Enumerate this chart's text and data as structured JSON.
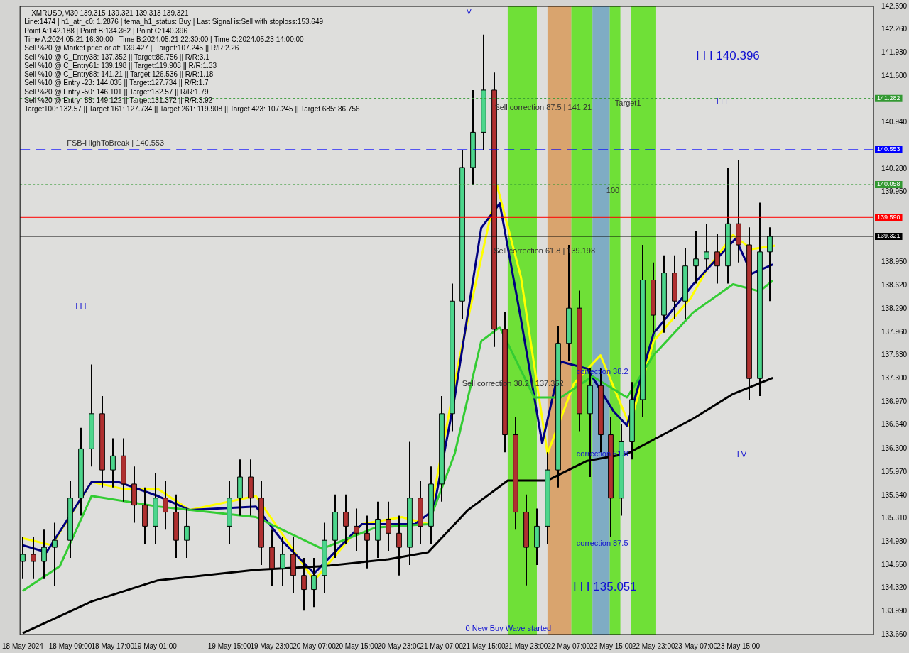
{
  "chart_data": {
    "type": "candlestick",
    "title": "XMRUSD,M30 139.315 139.321 139.313 139.321",
    "x": [
      "2024-05-18T00:00",
      "2024-05-18T02:00",
      "2024-05-18T04:00",
      "2024-05-18T06:00",
      "2024-05-18T09:00",
      "2024-05-18T11:00",
      "2024-05-18T13:00",
      "2024-05-18T15:00",
      "2024-05-18T17:00",
      "2024-05-18T19:00",
      "2024-05-18T21:00",
      "2024-05-18T23:00",
      "2024-05-19T01:00",
      "2024-05-19T03:00",
      "2024-05-19T05:00",
      "2024-05-19T07:00",
      "2024-05-19T15:00",
      "2024-05-19T17:00",
      "2024-05-19T19:00",
      "2024-05-19T21:00",
      "2024-05-19T23:00",
      "2024-05-20T01:00",
      "2024-05-20T03:00",
      "2024-05-20T05:00",
      "2024-05-20T07:00",
      "2024-05-20T09:00",
      "2024-05-20T11:00",
      "2024-05-20T13:00",
      "2024-05-20T15:00",
      "2024-05-20T17:00",
      "2024-05-20T19:00",
      "2024-05-20T21:00",
      "2024-05-20T23:00",
      "2024-05-21T01:00",
      "2024-05-21T03:00",
      "2024-05-21T05:00",
      "2024-05-21T07:00",
      "2024-05-21T09:00",
      "2024-05-21T11:00",
      "2024-05-21T13:00",
      "2024-05-21T15:00",
      "2024-05-21T17:00",
      "2024-05-21T19:00",
      "2024-05-21T21:00",
      "2024-05-21T23:00",
      "2024-05-22T01:00",
      "2024-05-22T03:00",
      "2024-05-22T05:00",
      "2024-05-22T07:00",
      "2024-05-22T09:00",
      "2024-05-22T11:00",
      "2024-05-22T13:00",
      "2024-05-22T15:00",
      "2024-05-22T17:00",
      "2024-05-22T19:00",
      "2024-05-22T21:00",
      "2024-05-22T23:00",
      "2024-05-23T01:00",
      "2024-05-23T03:00",
      "2024-05-23T05:00",
      "2024-05-23T07:00",
      "2024-05-23T09:00",
      "2024-05-23T11:00",
      "2024-05-23T13:00",
      "2024-05-23T15:00",
      "2024-05-23T17:00",
      "2024-05-23T19:00",
      "2024-05-23T21:00"
    ],
    "ohlc": [
      [
        134.7,
        135.05,
        134.45,
        134.8
      ],
      [
        134.8,
        135.05,
        134.45,
        134.7
      ],
      [
        134.7,
        135.15,
        134.45,
        134.9
      ],
      [
        134.9,
        135.25,
        134.35,
        135.0
      ],
      [
        135.0,
        135.85,
        134.75,
        135.6
      ],
      [
        135.6,
        136.6,
        135.35,
        136.3
      ],
      [
        136.3,
        137.5,
        136.05,
        136.8
      ],
      [
        136.8,
        137.05,
        135.75,
        136.0
      ],
      [
        136.0,
        136.45,
        135.75,
        136.2
      ],
      [
        136.2,
        136.45,
        135.55,
        135.8
      ],
      [
        135.8,
        136.05,
        135.25,
        135.5
      ],
      [
        135.5,
        135.75,
        134.95,
        135.2
      ],
      [
        135.2,
        135.95,
        134.95,
        135.6
      ],
      [
        135.6,
        135.85,
        135.15,
        135.4
      ],
      [
        135.4,
        135.65,
        134.75,
        135.0
      ],
      [
        135.0,
        135.45,
        134.75,
        135.2
      ],
      [
        135.2,
        135.85,
        134.95,
        135.6
      ],
      [
        135.6,
        136.15,
        135.35,
        135.9
      ],
      [
        135.9,
        136.15,
        135.35,
        135.6
      ],
      [
        135.6,
        135.85,
        134.65,
        134.9
      ],
      [
        134.9,
        135.15,
        134.35,
        134.6
      ],
      [
        134.6,
        135.05,
        134.35,
        134.8
      ],
      [
        134.8,
        135.05,
        134.25,
        134.5
      ],
      [
        134.5,
        134.75,
        134.0,
        134.3
      ],
      [
        134.3,
        134.75,
        134.05,
        134.5
      ],
      [
        134.5,
        135.25,
        134.25,
        135.0
      ],
      [
        135.0,
        135.65,
        134.75,
        135.4
      ],
      [
        135.4,
        135.65,
        134.95,
        135.2
      ],
      [
        135.2,
        135.45,
        134.85,
        135.1
      ],
      [
        135.1,
        135.35,
        134.6,
        135.0
      ],
      [
        135.0,
        135.55,
        134.75,
        135.3
      ],
      [
        135.3,
        135.55,
        134.85,
        135.1
      ],
      [
        135.1,
        135.35,
        134.5,
        134.9
      ],
      [
        134.9,
        136.4,
        134.65,
        135.6
      ],
      [
        135.6,
        135.85,
        134.95,
        135.2
      ],
      [
        135.2,
        136.05,
        134.95,
        135.8
      ],
      [
        135.8,
        137.05,
        135.55,
        136.8
      ],
      [
        136.8,
        138.65,
        136.55,
        138.4
      ],
      [
        138.4,
        140.55,
        138.15,
        140.3
      ],
      [
        140.3,
        141.4,
        140.05,
        140.8
      ],
      [
        140.8,
        142.19,
        140.55,
        141.4
      ],
      [
        141.4,
        141.65,
        137.75,
        138.0
      ],
      [
        138.0,
        138.25,
        136.25,
        136.5
      ],
      [
        136.5,
        136.75,
        135.15,
        135.4
      ],
      [
        135.4,
        135.65,
        134.36,
        134.9
      ],
      [
        134.9,
        135.45,
        134.65,
        135.2
      ],
      [
        135.2,
        136.25,
        134.95,
        136.0
      ],
      [
        136.0,
        138.05,
        135.75,
        137.8
      ],
      [
        137.8,
        139.2,
        137.55,
        138.3
      ],
      [
        138.3,
        138.55,
        136.55,
        136.8
      ],
      [
        136.8,
        137.45,
        135.9,
        137.2
      ],
      [
        137.2,
        137.45,
        136.25,
        136.5
      ],
      [
        136.5,
        136.75,
        135.05,
        135.6
      ],
      [
        135.6,
        136.65,
        135.35,
        136.4
      ],
      [
        136.4,
        137.25,
        136.15,
        137.0
      ],
      [
        137.0,
        139.2,
        136.75,
        138.7
      ],
      [
        138.7,
        138.95,
        137.95,
        138.2
      ],
      [
        138.2,
        139.05,
        137.95,
        138.8
      ],
      [
        138.8,
        139.05,
        138.15,
        138.4
      ],
      [
        138.4,
        139.15,
        138.15,
        138.9
      ],
      [
        138.9,
        139.4,
        138.65,
        139.0
      ],
      [
        139.0,
        139.5,
        138.85,
        139.1
      ],
      [
        139.1,
        139.35,
        138.65,
        138.9
      ],
      [
        138.9,
        140.3,
        138.65,
        139.5
      ],
      [
        139.5,
        140.4,
        138.95,
        139.2
      ],
      [
        139.2,
        139.45,
        137.0,
        137.3
      ],
      [
        137.3,
        139.8,
        137.05,
        139.1
      ],
      [
        139.1,
        139.45,
        138.4,
        139.321
      ]
    ],
    "colors": [
      "#4cd68c",
      "#b03030",
      "#4cd68c",
      "#4cd68c",
      "#4cd68c",
      "#4cd68c",
      "#4cd68c",
      "#b03030",
      "#4cd68c",
      "#b03030",
      "#b03030",
      "#b03030",
      "#4cd68c",
      "#b03030",
      "#b03030",
      "#4cd68c",
      "#4cd68c",
      "#4cd68c",
      "#b03030",
      "#b03030",
      "#b03030",
      "#4cd68c",
      "#b03030",
      "#b03030",
      "#4cd68c",
      "#4cd68c",
      "#4cd68c",
      "#b03030",
      "#b03030",
      "#b03030",
      "#4cd68c",
      "#b03030",
      "#b03030",
      "#4cd68c",
      "#b03030",
      "#4cd68c",
      "#4cd68c",
      "#4cd68c",
      "#4cd68c",
      "#4cd68c",
      "#4cd68c",
      "#b03030",
      "#b03030",
      "#b03030",
      "#b03030",
      "#4cd68c",
      "#4cd68c",
      "#4cd68c",
      "#4cd68c",
      "#b03030",
      "#4cd68c",
      "#b03030",
      "#b03030",
      "#4cd68c",
      "#4cd68c",
      "#4cd68c",
      "#b03030",
      "#4cd68c",
      "#b03030",
      "#4cd68c",
      "#4cd68c",
      "#4cd68c",
      "#b03030",
      "#4cd68c",
      "#b03030",
      "#b03030",
      "#4cd68c",
      "#4cd68c"
    ],
    "series": [
      {
        "type": "line",
        "color": "#000000",
        "x": [
          "2024-05-18T00:00",
          "2024-05-18T13:00",
          "2024-05-19T01:30",
          "2024-05-19T20:00",
          "2024-05-20T08:30",
          "2024-05-20T21:00",
          "2024-05-21T04:30",
          "2024-05-21T12:00",
          "2024-05-21T19:30",
          "2024-05-22T03:00",
          "2024-05-22T10:30",
          "2024-05-22T18:00",
          "2024-05-22T23:00",
          "2024-05-23T06:30",
          "2024-05-23T14:00",
          "2024-05-23T21:30"
        ],
        "values": [
          133.68,
          134.13,
          134.43,
          134.58,
          134.63,
          134.73,
          134.83,
          135.43,
          135.85,
          135.85,
          136.13,
          136.23,
          136.43,
          136.73,
          137.08,
          137.31
        ]
      },
      {
        "type": "line",
        "color": "#33cc33",
        "x": [
          "2024-05-18T00:00",
          "2024-05-18T07:00",
          "2024-05-18T13:00",
          "2024-05-19T01:30",
          "2024-05-19T20:00",
          "2024-05-20T08:30",
          "2024-05-20T18:30",
          "2024-05-21T04:30",
          "2024-05-21T09:30",
          "2024-05-21T14:30",
          "2024-05-21T18:00",
          "2024-05-22T00:30",
          "2024-05-22T05:30",
          "2024-05-22T11:30",
          "2024-05-22T18:00",
          "2024-05-22T23:00",
          "2024-05-23T06:30",
          "2024-05-23T14:00",
          "2024-05-23T19:00",
          "2024-05-23T21:30"
        ],
        "values": [
          134.28,
          134.63,
          135.63,
          135.48,
          135.33,
          134.88,
          135.18,
          135.23,
          136.23,
          137.83,
          138.03,
          137.03,
          137.03,
          137.33,
          137.03,
          137.63,
          138.24,
          138.64,
          138.54,
          138.69
        ]
      },
      {
        "type": "line",
        "color": "#000080",
        "x": [
          "2024-05-18T00:00",
          "2024-05-18T04:30",
          "2024-05-18T13:00",
          "2024-05-18T18:00",
          "2024-05-19T01:30",
          "2024-05-19T07:30",
          "2024-05-19T20:00",
          "2024-05-20T01:00",
          "2024-05-20T07:00",
          "2024-05-20T16:00",
          "2024-05-21T02:00",
          "2024-05-21T05:30",
          "2024-05-21T09:30",
          "2024-05-21T14:30",
          "2024-05-21T18:00",
          "2024-05-21T22:00",
          "2024-05-22T02:00",
          "2024-05-22T05:30",
          "2024-05-22T10:30",
          "2024-05-22T15:30",
          "2024-05-22T18:00",
          "2024-05-22T23:00",
          "2024-05-23T06:30",
          "2024-05-23T14:30",
          "2024-05-23T17:30",
          "2024-05-23T21:30"
        ],
        "values": [
          134.93,
          134.83,
          135.83,
          135.83,
          135.63,
          135.43,
          135.48,
          134.99,
          134.53,
          135.23,
          135.23,
          135.43,
          137.03,
          139.44,
          139.79,
          138.14,
          136.38,
          137.54,
          137.44,
          136.83,
          136.63,
          137.94,
          138.64,
          139.29,
          138.79,
          138.92
        ]
      },
      {
        "type": "line",
        "color": "#ffff00",
        "x": [
          "2024-05-18T00:00",
          "2024-05-18T05:30",
          "2024-05-18T13:00",
          "2024-05-18T19:00",
          "2024-05-19T01:30",
          "2024-05-19T07:30",
          "2024-05-19T20:00",
          "2024-05-20T07:00",
          "2024-05-20T16:00",
          "2024-05-20T23:30",
          "2024-05-21T04:30",
          "2024-05-21T10:30",
          "2024-05-21T17:30",
          "2024-05-21T22:00",
          "2024-05-22T03:00",
          "2024-05-22T08:00",
          "2024-05-22T13:00",
          "2024-05-22T18:30",
          "2024-05-22T23:00",
          "2024-05-23T06:00",
          "2024-05-23T09:00",
          "2024-05-23T14:00",
          "2024-05-23T17:30",
          "2024-05-23T22:00"
        ],
        "values": [
          135.03,
          134.93,
          135.83,
          135.73,
          135.73,
          135.43,
          135.63,
          134.43,
          135.23,
          135.33,
          135.23,
          137.63,
          140.04,
          138.74,
          136.23,
          137.23,
          137.63,
          136.63,
          137.83,
          138.44,
          138.84,
          139.34,
          139.14,
          139.19
        ]
      }
    ],
    "xlim": [
      "2024-05-17T23:30",
      "2024-05-24T16:30"
    ],
    "xticks": [
      {
        "value": "2024-05-18T00:00",
        "label": "18 May 2024"
      },
      {
        "value": "2024-05-18T09:00",
        "label": "18 May 09:00"
      },
      {
        "value": "2024-05-18T17:00",
        "label": "18 May 17:00"
      },
      {
        "value": "2024-05-19T01:00",
        "label": "19 May 01:00"
      },
      {
        "value": "2024-05-19T15:00",
        "label": "19 May 15:00"
      },
      {
        "value": "2024-05-19T23:00",
        "label": "19 May 23:00"
      },
      {
        "value": "2024-05-20T07:00",
        "label": "20 May 07:00"
      },
      {
        "value": "2024-05-20T15:00",
        "label": "20 May 15:00"
      },
      {
        "value": "2024-05-20T23:00",
        "label": "20 May 23:00"
      },
      {
        "value": "2024-05-21T07:00",
        "label": "21 May 07:00"
      },
      {
        "value": "2024-05-21T15:00",
        "label": "21 May 15:00"
      },
      {
        "value": "2024-05-21T23:00",
        "label": "21 May 23:00"
      },
      {
        "value": "2024-05-22T07:00",
        "label": "22 May 07:00"
      },
      {
        "value": "2024-05-22T15:00",
        "label": "22 May 15:00"
      },
      {
        "value": "2024-05-22T23:00",
        "label": "22 May 23:00"
      },
      {
        "value": "2024-05-23T07:00",
        "label": "23 May 07:00"
      },
      {
        "value": "2024-05-23T15:00",
        "label": "23 May 15:00"
      }
    ],
    "ylim": [
      133.66,
      142.59
    ],
    "yticks": [
      {
        "value": 133.66,
        "label": "133.660"
      },
      {
        "value": 133.99,
        "label": "133.990"
      },
      {
        "value": 134.32,
        "label": "134.320"
      },
      {
        "value": 134.65,
        "label": "134.650"
      },
      {
        "value": 134.98,
        "label": "134.980"
      },
      {
        "value": 135.31,
        "label": "135.310"
      },
      {
        "value": 135.64,
        "label": "135.640"
      },
      {
        "value": 135.97,
        "label": "135.970"
      },
      {
        "value": 136.3,
        "label": "136.300"
      },
      {
        "value": 136.64,
        "label": "136.640"
      },
      {
        "value": 136.97,
        "label": "136.970"
      },
      {
        "value": 137.3,
        "label": "137.300"
      },
      {
        "value": 137.63,
        "label": "137.630"
      },
      {
        "value": 137.96,
        "label": "137.960"
      },
      {
        "value": 138.29,
        "label": "138.290"
      },
      {
        "value": 138.62,
        "label": "138.620"
      },
      {
        "value": 138.95,
        "label": "138.950"
      },
      {
        "value": 139.95,
        "label": "139.950"
      },
      {
        "value": 140.28,
        "label": "140.280"
      },
      {
        "value": 140.94,
        "label": "140.940"
      },
      {
        "value": 141.6,
        "label": "141.600"
      },
      {
        "value": 141.93,
        "label": "141.930"
      },
      {
        "value": 142.26,
        "label": "142.260"
      },
      {
        "value": 142.59,
        "label": "142.590"
      }
    ],
    "ref_lines": [
      {
        "axis": "y",
        "value": 141.282,
        "label": "141.282",
        "color": "#339933",
        "line_style": "dotted"
      },
      {
        "axis": "y",
        "value": 140.553,
        "label": "140.553",
        "color": "#0000ff",
        "line_style": "dashed"
      },
      {
        "axis": "y",
        "value": 140.058,
        "label": "140.058",
        "color": "#339933",
        "line_style": "dotted"
      },
      {
        "axis": "y",
        "value": 139.59,
        "label": "139.590",
        "color": "#ff0000",
        "line_style": "solid"
      },
      {
        "axis": "y",
        "value": 139.321,
        "label": "139.321",
        "color": "#000000",
        "line_style": "solid"
      }
    ],
    "bands": [
      {
        "axis": "x",
        "from": "2024-05-21T19:30",
        "to": "2024-05-22T01:00",
        "color": "#5ce01a"
      },
      {
        "axis": "x",
        "from": "2024-05-22T03:00",
        "to": "2024-05-22T07:30",
        "color": "#d89a5a"
      },
      {
        "axis": "x",
        "from": "2024-05-22T07:30",
        "to": "2024-05-22T11:30",
        "color": "#5ce01a"
      },
      {
        "axis": "x",
        "from": "2024-05-22T11:30",
        "to": "2024-05-22T14:45",
        "color": "#6fa3c0"
      },
      {
        "axis": "x",
        "from": "2024-05-22T14:45",
        "to": "2024-05-22T16:45",
        "color": "#5ce01a"
      },
      {
        "axis": "x",
        "from": "2024-05-22T18:45",
        "to": "2024-05-22T23:30",
        "color": "#5ce01a"
      }
    ],
    "annotations": [
      "Line:1474 | h1_atr_c0: 1.2876 | tema_h1_status: Buy | Last Signal is:Sell with stoploss:153.649",
      "Point A:142.188 | Point B:134.362 | Point C:140.396",
      "Time A:2024.05.21 16:30:00 | Time B:2024.05.21 22:30:00 | Time C:2024.05.23 14:00:00",
      "Sell %20 @ Market price or at: 139.427 || Target:107.245 || R/R:2.26",
      "Sell %10 @ C_Entry38: 137.352 || Target:86.756 || R/R:3.1",
      "Sell %10 @ C_Entry61: 139.198 || Target:119.908 || R/R:1.33",
      "Sell %10 @ C_Entry88: 141.21 || Target:126.536 || R/R:1.18",
      "Sell %10 @ Entry -23: 144.035 || Target:127.734 || R/R:1.7",
      "Sell %20 @ Entry -50: 146.101 || Target:132.57 || R/R:1.79",
      "Sell %20 @ Entry -88: 149.122 || Target:131.372 || R/R:3.92",
      "Target100: 132.57 || Target 161: 127.734 || Target 261: 119.908 || Target 423: 107.245 || Target 685: 86.756",
      "Sell correction 87.5 | 141.21",
      "Target1",
      "100",
      "Sell correction 61.8 | 139.198",
      "Sell correction 38.2 | 137.352",
      "correction 38.2",
      "correction 61.8",
      "correction 87.5",
      "I I I 135.051",
      "I I I 140.396",
      "0 New Buy Wave started",
      "I I I",
      "I I I",
      "I V",
      "V",
      "FSB-HighToBreak | 140.553"
    ],
    "legend": false,
    "grid": false
  }
}
